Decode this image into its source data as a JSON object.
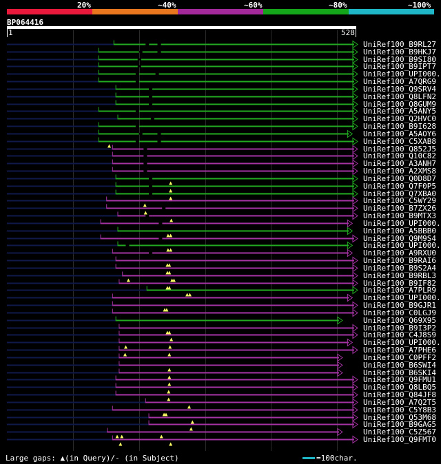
{
  "scale": {
    "labels": [
      "20%",
      "~40%",
      "~60%",
      "~80%",
      "~100%"
    ],
    "colors": [
      "#e8193a",
      "#e8761e",
      "#a3299a",
      "#15a51a",
      "#1fb6c8"
    ]
  },
  "query": {
    "id": "BP064416",
    "start_label": "1",
    "end_label": "528",
    "length": 528
  },
  "colors": {
    "green": "#22aa22",
    "magenta": "#a533a3",
    "navy": "#101a4a",
    "gap": "#ffff66",
    "grid": "#2a2a2a"
  },
  "hits": [
    {
      "acc": "UniRef100_B9RL27",
      "color": "green",
      "start": 162,
      "end": 528,
      "gaps_q": [],
      "gaps_s": [
        210,
        228
      ]
    },
    {
      "acc": "UniRef100_B9HKJ7",
      "color": "green",
      "start": 139,
      "end": 528,
      "gaps_q": [],
      "gaps_s": [
        200,
        228
      ]
    },
    {
      "acc": "UniRef100_B9SI80",
      "color": "green",
      "start": 139,
      "end": 528,
      "gaps_q": [],
      "gaps_s": [
        198
      ]
    },
    {
      "acc": "UniRef100_B9IPT7",
      "color": "green",
      "start": 139,
      "end": 528,
      "gaps_q": [],
      "gaps_s": [
        198
      ]
    },
    {
      "acc": "UniRef100_UPI000...",
      "color": "green",
      "start": 139,
      "end": 528,
      "gaps_q": [],
      "gaps_s": [
        195,
        225
      ]
    },
    {
      "acc": "UniRef100_A7QRG9",
      "color": "green",
      "start": 139,
      "end": 528,
      "gaps_q": [],
      "gaps_s": [
        195
      ]
    },
    {
      "acc": "UniRef100_Q9SRV4",
      "color": "green",
      "start": 165,
      "end": 528,
      "gaps_q": [],
      "gaps_s": [
        215
      ]
    },
    {
      "acc": "UniRef100_Q8LFN2",
      "color": "green",
      "start": 165,
      "end": 528,
      "gaps_q": [],
      "gaps_s": [
        215
      ]
    },
    {
      "acc": "UniRef100_Q8GUM9",
      "color": "green",
      "start": 165,
      "end": 528,
      "gaps_q": [],
      "gaps_s": [
        215
      ]
    },
    {
      "acc": "UniRef100_A5ANY5",
      "color": "green",
      "start": 139,
      "end": 528,
      "gaps_q": [],
      "gaps_s": [
        195
      ]
    },
    {
      "acc": "UniRef100_Q2HVC0",
      "color": "green",
      "start": 168,
      "end": 528,
      "gaps_q": [],
      "gaps_s": [
        218
      ]
    },
    {
      "acc": "UniRef100_B9I628",
      "color": "green",
      "start": 139,
      "end": 528,
      "gaps_q": [],
      "gaps_s": [
        195
      ]
    },
    {
      "acc": "UniRef100_A5AOY6",
      "color": "green",
      "start": 139,
      "end": 520,
      "gaps_q": [],
      "gaps_s": [
        200,
        228
      ]
    },
    {
      "acc": "UniRef100_C5XAB8",
      "color": "green",
      "start": 139,
      "end": 528,
      "gaps_q": [
        155
      ],
      "gaps_s": [
        195,
        228
      ]
    },
    {
      "acc": "UniRef100_Q852J5",
      "color": "magenta",
      "start": 160,
      "end": 528,
      "gaps_q": [],
      "gaps_s": [
        207
      ]
    },
    {
      "acc": "UniRef100_Q10C82",
      "color": "magenta",
      "start": 160,
      "end": 528,
      "gaps_q": [],
      "gaps_s": [
        207
      ]
    },
    {
      "acc": "UniRef100_A3ANH7",
      "color": "magenta",
      "start": 160,
      "end": 528,
      "gaps_q": [],
      "gaps_s": [
        207
      ]
    },
    {
      "acc": "UniRef100_A2XMS8",
      "color": "magenta",
      "start": 160,
      "end": 528,
      "gaps_q": [],
      "gaps_s": [
        207
      ]
    },
    {
      "acc": "UniRef100_Q0D8D7",
      "color": "green",
      "start": 165,
      "end": 528,
      "gaps_q": [
        248
      ],
      "gaps_s": [
        215
      ]
    },
    {
      "acc": "UniRef100_Q7F0P5",
      "color": "green",
      "start": 165,
      "end": 528,
      "gaps_q": [
        248
      ],
      "gaps_s": [
        215
      ]
    },
    {
      "acc": "UniRef100_Q7XBA0",
      "color": "green",
      "start": 165,
      "end": 528,
      "gaps_q": [
        248
      ],
      "gaps_s": [
        215
      ]
    },
    {
      "acc": "UniRef100_C5WY29",
      "color": "magenta",
      "start": 151,
      "end": 528,
      "gaps_q": [
        209
      ],
      "gaps_s": []
    },
    {
      "acc": "UniRef100_B7ZX26",
      "color": "magenta",
      "start": 151,
      "end": 528,
      "gaps_q": [
        210
      ],
      "gaps_s": [
        235
      ]
    },
    {
      "acc": "UniRef100_B9MTX3",
      "color": "magenta",
      "start": 168,
      "end": 528,
      "gaps_q": [
        249
      ],
      "gaps_s": [
        210
      ]
    },
    {
      "acc": "UniRef100_UPI000...",
      "color": "magenta",
      "start": 142,
      "end": 520,
      "gaps_q": [],
      "gaps_s": [
        230
      ]
    },
    {
      "acc": "UniRef100_A5BBB0",
      "color": "green",
      "start": 168,
      "end": 520,
      "gaps_q": [
        244,
        248
      ],
      "gaps_s": []
    },
    {
      "acc": "UniRef100_Q9M9S4",
      "color": "magenta",
      "start": 142,
      "end": 528,
      "gaps_q": [],
      "gaps_s": [
        230
      ]
    },
    {
      "acc": "UniRef100_UPI000...",
      "color": "green",
      "start": 168,
      "end": 520,
      "gaps_q": [
        244,
        248
      ],
      "gaps_s": [
        180
      ]
    },
    {
      "acc": "UniRef100_A9RXU0",
      "color": "magenta",
      "start": 160,
      "end": 520,
      "gaps_q": [],
      "gaps_s": [
        215
      ]
    },
    {
      "acc": "UniRef100_B9RAI6",
      "color": "magenta",
      "start": 165,
      "end": 528,
      "gaps_q": [
        243,
        246
      ],
      "gaps_s": []
    },
    {
      "acc": "UniRef100_B9S2A4",
      "color": "magenta",
      "start": 165,
      "end": 528,
      "gaps_q": [
        243,
        246
      ],
      "gaps_s": []
    },
    {
      "acc": "UniRef100_B9RBL3",
      "color": "magenta",
      "start": 175,
      "end": 528,
      "gaps_q": [
        184,
        250,
        253
      ],
      "gaps_s": []
    },
    {
      "acc": "UniRef100_B9IF82",
      "color": "magenta",
      "start": 170,
      "end": 528,
      "gaps_q": [
        243,
        246
      ],
      "gaps_s": []
    },
    {
      "acc": "UniRef100_A7PLR9",
      "color": "green",
      "start": 212,
      "end": 528,
      "gaps_q": [
        273,
        277
      ],
      "gaps_s": []
    },
    {
      "acc": "UniRef100_UPI000...",
      "color": "magenta",
      "start": 160,
      "end": 520,
      "gaps_q": [],
      "gaps_s": []
    },
    {
      "acc": "UniRef100_B9GJR1",
      "color": "magenta",
      "start": 160,
      "end": 528,
      "gaps_q": [
        239,
        242
      ],
      "gaps_s": []
    },
    {
      "acc": "UniRef100_C0LGJ9",
      "color": "magenta",
      "start": 160,
      "end": 528,
      "gaps_q": [],
      "gaps_s": []
    },
    {
      "acc": "UniRef100_Q69X95",
      "color": "green",
      "start": 165,
      "end": 505,
      "gaps_q": [],
      "gaps_s": []
    },
    {
      "acc": "UniRef100_B9I3P2",
      "color": "magenta",
      "start": 170,
      "end": 528,
      "gaps_q": [
        243,
        246
      ],
      "gaps_s": []
    },
    {
      "acc": "UniRef100_C4J8S9",
      "color": "magenta",
      "start": 170,
      "end": 528,
      "gaps_q": [
        249
      ],
      "gaps_s": []
    },
    {
      "acc": "UniRef100_UPI000...",
      "color": "magenta",
      "start": 170,
      "end": 520,
      "gaps_q": [
        180,
        247
      ],
      "gaps_s": []
    },
    {
      "acc": "UniRef100_A7PHE6",
      "color": "magenta",
      "start": 170,
      "end": 528,
      "gaps_q": [
        179,
        246
      ],
      "gaps_s": []
    },
    {
      "acc": "UniRef100_C0PFF2",
      "color": "magenta",
      "start": 170,
      "end": 505,
      "gaps_q": [],
      "gaps_s": []
    },
    {
      "acc": "UniRef100_B6SWI4",
      "color": "magenta",
      "start": 170,
      "end": 505,
      "gaps_q": [
        246
      ],
      "gaps_s": []
    },
    {
      "acc": "UniRef100_B6SKI4",
      "color": "magenta",
      "start": 170,
      "end": 505,
      "gaps_q": [
        246
      ],
      "gaps_s": []
    },
    {
      "acc": "UniRef100_Q9FMU1",
      "color": "magenta",
      "start": 165,
      "end": 528,
      "gaps_q": [
        246
      ],
      "gaps_s": []
    },
    {
      "acc": "UniRef100_Q8LBQ5",
      "color": "magenta",
      "start": 165,
      "end": 528,
      "gaps_q": [
        245
      ],
      "gaps_s": []
    },
    {
      "acc": "UniRef100_Q84JF8",
      "color": "magenta",
      "start": 165,
      "end": 528,
      "gaps_q": [
        245
      ],
      "gaps_s": []
    },
    {
      "acc": "UniRef100_A7Q2T5",
      "color": "magenta",
      "start": 210,
      "end": 528,
      "gaps_q": [
        276
      ],
      "gaps_s": []
    },
    {
      "acc": "UniRef100_C5Y8B3",
      "color": "magenta",
      "start": 160,
      "end": 528,
      "gaps_q": [
        238,
        241
      ],
      "gaps_s": []
    },
    {
      "acc": "UniRef100_Q53M68",
      "color": "magenta",
      "start": 215,
      "end": 528,
      "gaps_q": [
        281
      ],
      "gaps_s": []
    },
    {
      "acc": "UniRef100_B9GAG5",
      "color": "magenta",
      "start": 215,
      "end": 528,
      "gaps_q": [
        279
      ],
      "gaps_s": []
    },
    {
      "acc": "UniRef100_C5Z567",
      "color": "magenta",
      "start": 152,
      "end": 505,
      "gaps_q": [
        167,
        174,
        234
      ],
      "gaps_s": []
    },
    {
      "acc": "UniRef100_Q9FMT0",
      "color": "magenta",
      "start": 160,
      "end": 528,
      "gaps_q": [
        172,
        248
      ],
      "gaps_s": []
    }
  ],
  "legend": {
    "label": "Large gaps:",
    "q_text": "(in Query)",
    "s_text": "/- (in Subject)",
    "scale_text": "=100char."
  }
}
